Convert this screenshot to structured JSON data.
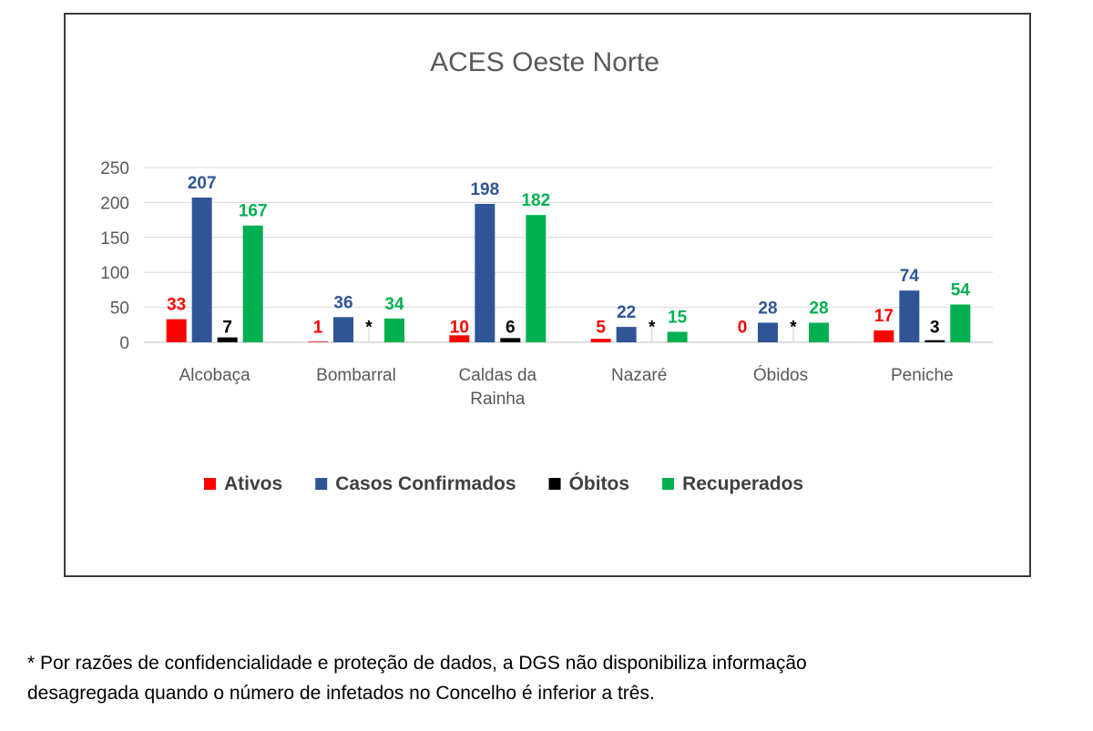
{
  "chart_data": {
    "type": "bar",
    "title": "ACES Oeste Norte",
    "categories": [
      [
        "Alcobaça"
      ],
      [
        "Bombarral"
      ],
      [
        "Caldas da",
        "Rainha"
      ],
      [
        "Nazaré"
      ],
      [
        "Óbidos"
      ],
      [
        "Peniche"
      ]
    ],
    "series": [
      {
        "name": "Ativos",
        "color": "#ff0000",
        "values": [
          33,
          1,
          10,
          5,
          0,
          17
        ],
        "labels": [
          "33",
          "1",
          "10",
          "5",
          "0",
          "17"
        ]
      },
      {
        "name": "Casos Confirmados",
        "color": "#2f5597",
        "values": [
          207,
          36,
          198,
          22,
          28,
          74
        ],
        "labels": [
          "207",
          "36",
          "198",
          "22",
          "28",
          "74"
        ]
      },
      {
        "name": "Óbitos",
        "color": "#000000",
        "values": [
          7,
          null,
          6,
          null,
          null,
          3
        ],
        "labels": [
          "7",
          "*",
          "6",
          "*",
          "*",
          "3"
        ]
      },
      {
        "name": "Recuperados",
        "color": "#00b050",
        "values": [
          167,
          34,
          182,
          15,
          28,
          54
        ],
        "labels": [
          "167",
          "34",
          "182",
          "15",
          "28",
          "54"
        ]
      }
    ],
    "ylim": [
      0,
      250
    ],
    "yticks": [
      "0",
      "50",
      "100",
      "150",
      "200",
      "250"
    ],
    "grid": true,
    "legend_position": "bottom"
  },
  "footnote": {
    "line1": "* Por razões de confidencialidade e proteção de dados, a DGS não disponibiliza informação",
    "line2": "desagregada quando o número de infetados no Concelho é inferior a três."
  }
}
